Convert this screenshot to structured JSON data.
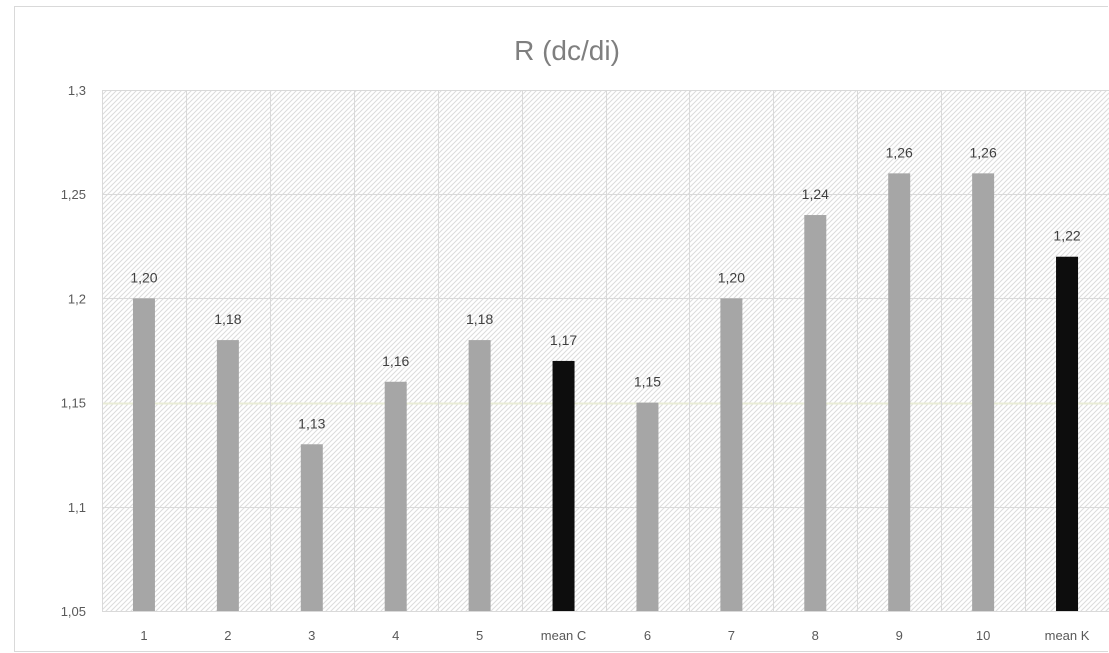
{
  "chart_data": {
    "type": "bar",
    "title": "R (dc/di)",
    "xlabel": "",
    "ylabel": "",
    "categories": [
      "1",
      "2",
      "3",
      "4",
      "5",
      "mean C",
      "6",
      "7",
      "8",
      "9",
      "10",
      "mean K"
    ],
    "values": [
      1.2,
      1.18,
      1.13,
      1.16,
      1.18,
      1.17,
      1.15,
      1.2,
      1.24,
      1.26,
      1.26,
      1.22
    ],
    "data_labels": [
      "1,20",
      "1,18",
      "1,13",
      "1,16",
      "1,18",
      "1,17",
      "1,15",
      "1,20",
      "1,24",
      "1,26",
      "1,26",
      "1,22"
    ],
    "ylim": [
      1.05,
      1.3
    ],
    "y_ticks": [
      1.05,
      1.1,
      1.15,
      1.2,
      1.25,
      1.3
    ],
    "y_tick_labels": [
      "1,05",
      "1,1",
      "1,15",
      "1,2",
      "1,25",
      "1,3"
    ],
    "grid": true,
    "legend": "none",
    "colors": {
      "regular_bar": "#a6a6a6",
      "mean_bar": "#0d0d0d",
      "gridline": "#d9d9d9",
      "highlight_line": "#e9ecd6",
      "plot_hatch": "#dcdcdc"
    },
    "mean_categories": [
      "mean C",
      "mean K"
    ]
  }
}
